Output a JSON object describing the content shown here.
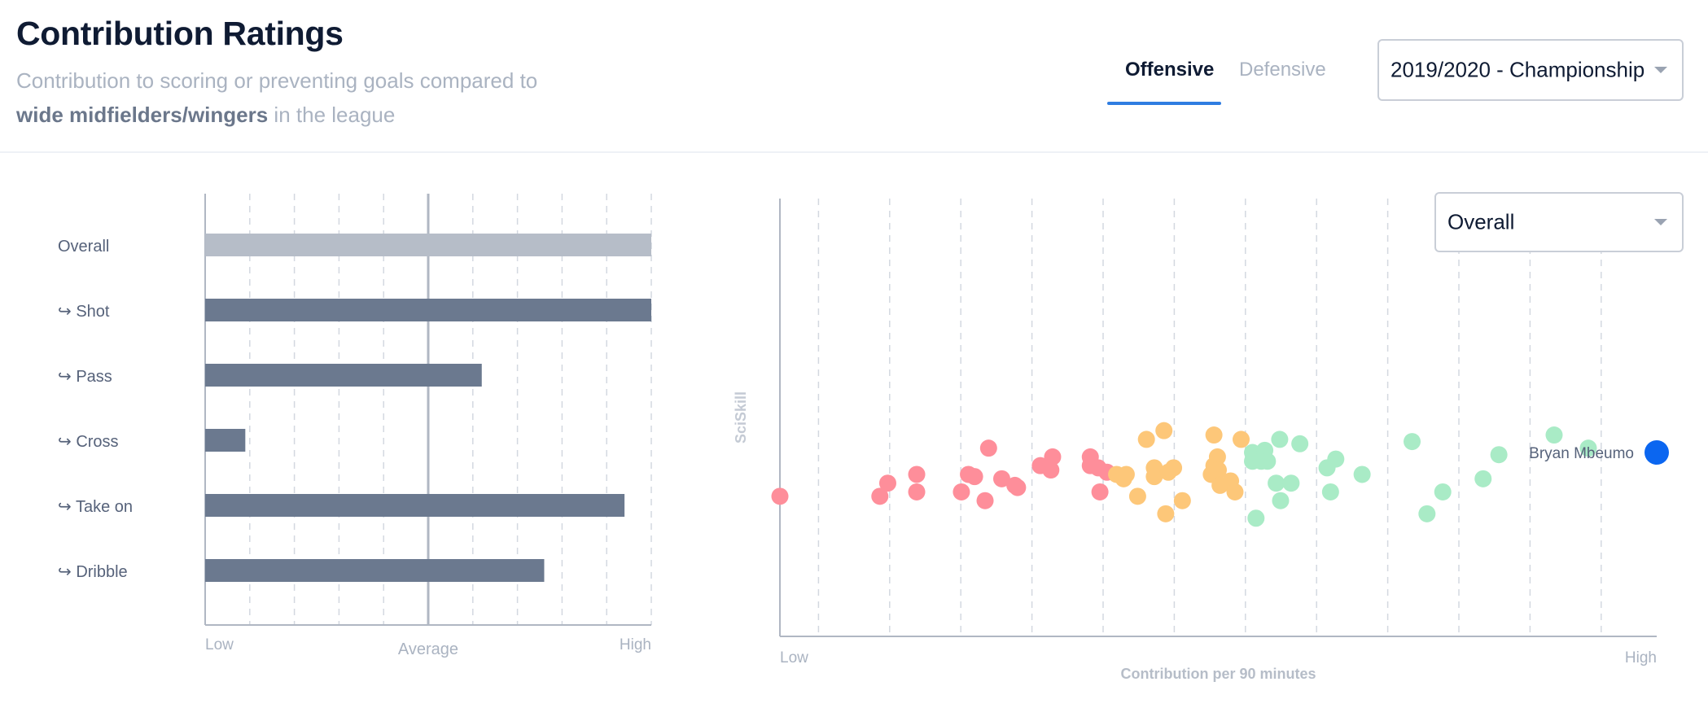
{
  "header": {
    "title": "Contribution Ratings",
    "subtitle_part1": "Contribution to scoring or preventing goals compared to",
    "subtitle_bold": "wide midfielders/wingers",
    "subtitle_part2": " in the league"
  },
  "tabs": [
    {
      "label": "Offensive",
      "active": true
    },
    {
      "label": "Defensive",
      "active": false
    }
  ],
  "season_select": {
    "value": "2019/2020 - Championship",
    "icon": "chevron-down-icon"
  },
  "metric_select": {
    "value": "Overall",
    "icon": "chevron-down-icon"
  },
  "colors": {
    "accent": "#2f7de1",
    "bar_overall": "#b6bdc8",
    "bar_sub": "#6b798f",
    "low": "#fe8e9a",
    "mid": "#fdc779",
    "high": "#a9ebc6",
    "highlight": "#0b66f0"
  },
  "chart_data": [
    {
      "type": "bar",
      "orientation": "horizontal",
      "categories": [
        "Overall",
        "↪ Shot",
        "↪ Pass",
        "↪ Cross",
        "↪ Take on",
        "↪ Dribble"
      ],
      "values": [
        1.0,
        1.0,
        0.62,
        0.09,
        0.94,
        0.76
      ],
      "xlim": [
        0,
        1
      ],
      "average": 0.5,
      "xtick_labels": {
        "low": "Low",
        "average": "Average",
        "high": "High"
      },
      "grid": "dashed vertical"
    },
    {
      "type": "scatter",
      "xlabel": "Contribution per 90 minutes",
      "ylabel": "SciSkill",
      "xtick_labels": {
        "low": "Low",
        "high": "High"
      },
      "xlim": [
        0,
        1
      ],
      "ylim": [
        0,
        1
      ],
      "grid": "dashed vertical",
      "highlight": {
        "name": "Bryan Mbeumo",
        "x": 1.0,
        "y": 0.42
      },
      "points": [
        {
          "x": 0.0,
          "y": 0.32,
          "group": "low"
        },
        {
          "x": 0.114,
          "y": 0.32,
          "group": "low"
        },
        {
          "x": 0.123,
          "y": 0.35,
          "group": "low"
        },
        {
          "x": 0.156,
          "y": 0.33,
          "group": "low"
        },
        {
          "x": 0.156,
          "y": 0.37,
          "group": "low"
        },
        {
          "x": 0.207,
          "y": 0.33,
          "group": "low"
        },
        {
          "x": 0.215,
          "y": 0.37,
          "group": "low"
        },
        {
          "x": 0.222,
          "y": 0.365,
          "group": "low"
        },
        {
          "x": 0.234,
          "y": 0.31,
          "group": "low"
        },
        {
          "x": 0.238,
          "y": 0.43,
          "group": "low"
        },
        {
          "x": 0.253,
          "y": 0.36,
          "group": "low"
        },
        {
          "x": 0.268,
          "y": 0.345,
          "group": "low"
        },
        {
          "x": 0.271,
          "y": 0.34,
          "group": "low"
        },
        {
          "x": 0.297,
          "y": 0.39,
          "group": "low"
        },
        {
          "x": 0.309,
          "y": 0.38,
          "group": "low"
        },
        {
          "x": 0.311,
          "y": 0.41,
          "group": "low"
        },
        {
          "x": 0.354,
          "y": 0.41,
          "group": "low"
        },
        {
          "x": 0.354,
          "y": 0.39,
          "group": "low"
        },
        {
          "x": 0.363,
          "y": 0.385,
          "group": "low"
        },
        {
          "x": 0.365,
          "y": 0.33,
          "group": "low"
        },
        {
          "x": 0.373,
          "y": 0.375,
          "group": "low"
        },
        {
          "x": 0.384,
          "y": 0.37,
          "group": "mid"
        },
        {
          "x": 0.392,
          "y": 0.36,
          "group": "mid"
        },
        {
          "x": 0.395,
          "y": 0.37,
          "group": "mid"
        },
        {
          "x": 0.408,
          "y": 0.32,
          "group": "mid"
        },
        {
          "x": 0.418,
          "y": 0.45,
          "group": "mid"
        },
        {
          "x": 0.427,
          "y": 0.385,
          "group": "mid"
        },
        {
          "x": 0.427,
          "y": 0.365,
          "group": "mid"
        },
        {
          "x": 0.438,
          "y": 0.47,
          "group": "mid"
        },
        {
          "x": 0.44,
          "y": 0.28,
          "group": "mid"
        },
        {
          "x": 0.443,
          "y": 0.375,
          "group": "mid"
        },
        {
          "x": 0.449,
          "y": 0.385,
          "group": "mid"
        },
        {
          "x": 0.459,
          "y": 0.31,
          "group": "mid"
        },
        {
          "x": 0.492,
          "y": 0.37,
          "group": "mid"
        },
        {
          "x": 0.495,
          "y": 0.39,
          "group": "mid"
        },
        {
          "x": 0.495,
          "y": 0.46,
          "group": "mid"
        },
        {
          "x": 0.499,
          "y": 0.41,
          "group": "mid"
        },
        {
          "x": 0.5,
          "y": 0.38,
          "group": "mid"
        },
        {
          "x": 0.502,
          "y": 0.345,
          "group": "mid"
        },
        {
          "x": 0.514,
          "y": 0.355,
          "group": "mid"
        },
        {
          "x": 0.519,
          "y": 0.33,
          "group": "mid"
        },
        {
          "x": 0.526,
          "y": 0.45,
          "group": "mid"
        },
        {
          "x": 0.539,
          "y": 0.4,
          "group": "high"
        },
        {
          "x": 0.539,
          "y": 0.42,
          "group": "high"
        },
        {
          "x": 0.543,
          "y": 0.27,
          "group": "high"
        },
        {
          "x": 0.549,
          "y": 0.4,
          "group": "high"
        },
        {
          "x": 0.553,
          "y": 0.425,
          "group": "high"
        },
        {
          "x": 0.556,
          "y": 0.4,
          "group": "high"
        },
        {
          "x": 0.566,
          "y": 0.35,
          "group": "high"
        },
        {
          "x": 0.57,
          "y": 0.45,
          "group": "high"
        },
        {
          "x": 0.571,
          "y": 0.31,
          "group": "high"
        },
        {
          "x": 0.583,
          "y": 0.35,
          "group": "high"
        },
        {
          "x": 0.593,
          "y": 0.44,
          "group": "high"
        },
        {
          "x": 0.624,
          "y": 0.385,
          "group": "high"
        },
        {
          "x": 0.628,
          "y": 0.33,
          "group": "high"
        },
        {
          "x": 0.634,
          "y": 0.405,
          "group": "high"
        },
        {
          "x": 0.664,
          "y": 0.37,
          "group": "high"
        },
        {
          "x": 0.721,
          "y": 0.445,
          "group": "high"
        },
        {
          "x": 0.738,
          "y": 0.28,
          "group": "high"
        },
        {
          "x": 0.756,
          "y": 0.33,
          "group": "high"
        },
        {
          "x": 0.802,
          "y": 0.36,
          "group": "high"
        },
        {
          "x": 0.82,
          "y": 0.415,
          "group": "high"
        },
        {
          "x": 0.883,
          "y": 0.46,
          "group": "high"
        },
        {
          "x": 0.922,
          "y": 0.43,
          "group": "high"
        }
      ]
    }
  ]
}
